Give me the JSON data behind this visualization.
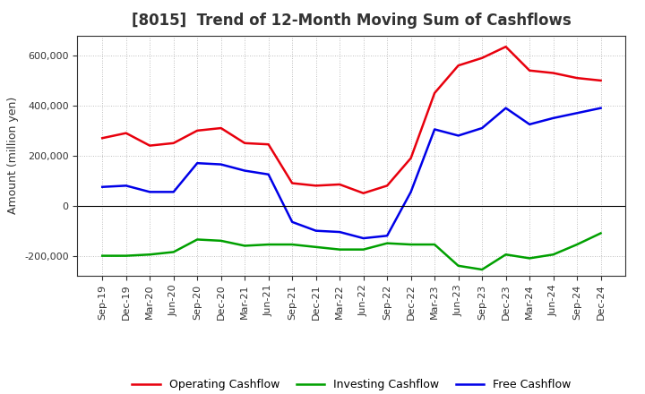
{
  "title": "[8015]  Trend of 12-Month Moving Sum of Cashflows",
  "ylabel": "Amount (million yen)",
  "xlabels": [
    "Sep-19",
    "Dec-19",
    "Mar-20",
    "Jun-20",
    "Sep-20",
    "Dec-20",
    "Mar-21",
    "Jun-21",
    "Sep-21",
    "Dec-21",
    "Mar-22",
    "Jun-22",
    "Sep-22",
    "Dec-22",
    "Mar-23",
    "Jun-23",
    "Sep-23",
    "Dec-23",
    "Mar-24",
    "Jun-24",
    "Sep-24",
    "Dec-24"
  ],
  "operating": [
    270000,
    290000,
    240000,
    250000,
    300000,
    310000,
    250000,
    245000,
    90000,
    80000,
    85000,
    50000,
    80000,
    190000,
    450000,
    560000,
    590000,
    635000,
    540000,
    530000,
    510000,
    500000
  ],
  "investing": [
    -200000,
    -200000,
    -195000,
    -185000,
    -135000,
    -140000,
    -160000,
    -155000,
    -155000,
    -165000,
    -175000,
    -175000,
    -150000,
    -155000,
    -155000,
    -240000,
    -255000,
    -195000,
    -210000,
    -195000,
    -155000,
    -110000
  ],
  "free": [
    75000,
    80000,
    55000,
    55000,
    170000,
    165000,
    140000,
    125000,
    -65000,
    -100000,
    -105000,
    -130000,
    -120000,
    55000,
    305000,
    280000,
    310000,
    390000,
    325000,
    350000,
    370000,
    390000
  ],
  "operating_color": "#e8000d",
  "investing_color": "#00a000",
  "free_color": "#0000e8",
  "ylim": [
    -280000,
    680000
  ],
  "yticks": [
    -200000,
    0,
    200000,
    400000,
    600000
  ],
  "bg_color": "#ffffff",
  "plot_bg_color": "#ffffff",
  "grid_color": "#aaaaaa",
  "title_fontsize": 12,
  "title_color": "#333333",
  "axis_fontsize": 8,
  "tick_fontsize": 8,
  "ylabel_fontsize": 9,
  "legend_fontsize": 9
}
